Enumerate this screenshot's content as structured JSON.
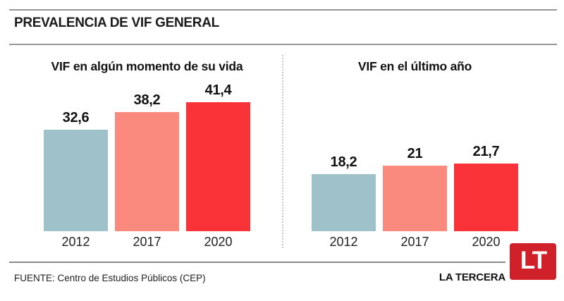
{
  "header": {
    "title": "PREVALENCIA DE VIF GENERAL"
  },
  "colors": {
    "bar_2012": "#9fc1ca",
    "bar_2017": "#fb8a7e",
    "bar_2020": "#f93338",
    "logo_red": "#d0202a",
    "rule_gray": "#979797"
  },
  "chart_data": [
    {
      "type": "bar",
      "title": "VIF en algún momento de su vida",
      "categories": [
        "2012",
        "2017",
        "2020"
      ],
      "values": [
        32.6,
        38.2,
        41.4
      ],
      "value_labels": [
        "32,6",
        "38,2",
        "41,4"
      ],
      "bar_colors": [
        "#9fc1ca",
        "#fb8a7e",
        "#f93338"
      ],
      "grid": false,
      "axes_visible": false
    },
    {
      "type": "bar",
      "title": "VIF en el último año",
      "categories": [
        "2012",
        "2017",
        "2020"
      ],
      "values": [
        18.2,
        21,
        21.7
      ],
      "value_labels": [
        "18,2",
        "21",
        "21,7"
      ],
      "bar_colors": [
        "#9fc1ca",
        "#fb8a7e",
        "#f93338"
      ],
      "grid": false,
      "axes_visible": false
    }
  ],
  "footer": {
    "source": "FUENTE: Centro de Estudios Públicos (CEP)",
    "brand": "LA TERCERA",
    "logo_text": "LT"
  }
}
